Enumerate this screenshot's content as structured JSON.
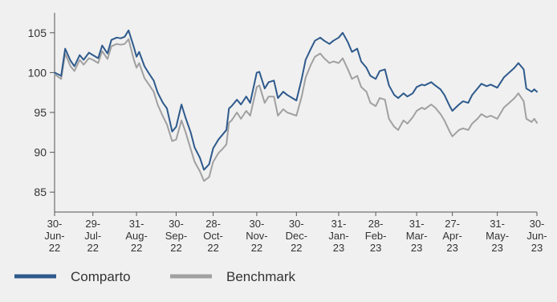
{
  "chart_data": {
    "type": "line",
    "title": "",
    "xlabel": "",
    "ylabel": "",
    "ylim": [
      82.5,
      107.5
    ],
    "grid": false,
    "legend_position": "bottom-left",
    "y_ticks": [
      85,
      90,
      95,
      100,
      105
    ],
    "x_ticks": [
      {
        "label": [
          "30-",
          "Jun-",
          "22"
        ],
        "x": "2022-06-30"
      },
      {
        "label": [
          "29-",
          "Jul-",
          "22"
        ],
        "x": "2022-07-29"
      },
      {
        "label": [
          "31-",
          "Aug-",
          "22"
        ],
        "x": "2022-08-31"
      },
      {
        "label": [
          "30-",
          "Sep-",
          "22"
        ],
        "x": "2022-09-30"
      },
      {
        "label": [
          "28-",
          "Oct-",
          "22"
        ],
        "x": "2022-10-28"
      },
      {
        "label": [
          "30-",
          "Nov-",
          "22"
        ],
        "x": "2022-11-30"
      },
      {
        "label": [
          "30-",
          "Dec-",
          "22"
        ],
        "x": "2022-12-30"
      },
      {
        "label": [
          "31-",
          "Jan-",
          "23"
        ],
        "x": "2023-01-31"
      },
      {
        "label": [
          "28-",
          "Feb-",
          "23"
        ],
        "x": "2023-02-28"
      },
      {
        "label": [
          "31-",
          "Mar-",
          "23"
        ],
        "x": "2023-03-31"
      },
      {
        "label": [
          "27-",
          "Apr-",
          "23"
        ],
        "x": "2023-04-27"
      },
      {
        "label": [
          "31-",
          "May-",
          "23"
        ],
        "x": "2023-05-31"
      },
      {
        "label": [
          "30-",
          "Jun-",
          "23"
        ],
        "x": "2023-06-30"
      }
    ],
    "series": [
      {
        "name": "Comparto",
        "color": "#2e5a8c",
        "points": [
          [
            "2022-06-30",
            100
          ],
          [
            "2022-07-05",
            99.6
          ],
          [
            "2022-07-08",
            103
          ],
          [
            "2022-07-12",
            101.5
          ],
          [
            "2022-07-15",
            100.8
          ],
          [
            "2022-07-19",
            102.2
          ],
          [
            "2022-07-22",
            101.6
          ],
          [
            "2022-07-26",
            102.5
          ],
          [
            "2022-07-29",
            102.2
          ],
          [
            "2022-08-02",
            101.8
          ],
          [
            "2022-08-05",
            103.4
          ],
          [
            "2022-08-09",
            102.4
          ],
          [
            "2022-08-12",
            104.1
          ],
          [
            "2022-08-16",
            104.4
          ],
          [
            "2022-08-19",
            104.3
          ],
          [
            "2022-08-22",
            104.5
          ],
          [
            "2022-08-25",
            105.3
          ],
          [
            "2022-08-29",
            103.2
          ],
          [
            "2022-08-31",
            102.0
          ],
          [
            "2022-09-02",
            102.6
          ],
          [
            "2022-09-06",
            100.8
          ],
          [
            "2022-09-09",
            100.0
          ],
          [
            "2022-09-13",
            99.0
          ],
          [
            "2022-09-16",
            97.5
          ],
          [
            "2022-09-20",
            96.2
          ],
          [
            "2022-09-23",
            95.5
          ],
          [
            "2022-09-27",
            92.6
          ],
          [
            "2022-09-30",
            93.2
          ],
          [
            "2022-10-04",
            96.0
          ],
          [
            "2022-10-07",
            94.4
          ],
          [
            "2022-10-11",
            92.5
          ],
          [
            "2022-10-14",
            90.6
          ],
          [
            "2022-10-18",
            89.3
          ],
          [
            "2022-10-21",
            87.8
          ],
          [
            "2022-10-25",
            88.5
          ],
          [
            "2022-10-28",
            90.5
          ],
          [
            "2022-11-01",
            91.6
          ],
          [
            "2022-11-04",
            92.2
          ],
          [
            "2022-11-07",
            92.8
          ],
          [
            "2022-11-09",
            95.5
          ],
          [
            "2022-11-11",
            95.8
          ],
          [
            "2022-11-15",
            96.6
          ],
          [
            "2022-11-18",
            96.0
          ],
          [
            "2022-11-22",
            97.0
          ],
          [
            "2022-11-25",
            96.2
          ],
          [
            "2022-11-30",
            100.0
          ],
          [
            "2022-12-02",
            100.1
          ],
          [
            "2022-12-06",
            98.0
          ],
          [
            "2022-12-09",
            98.8
          ],
          [
            "2022-12-13",
            99.0
          ],
          [
            "2022-12-16",
            96.8
          ],
          [
            "2022-12-20",
            97.6
          ],
          [
            "2022-12-23",
            97.2
          ],
          [
            "2022-12-30",
            96.5
          ],
          [
            "2023-01-03",
            99.2
          ],
          [
            "2023-01-06",
            101.6
          ],
          [
            "2023-01-10",
            103.0
          ],
          [
            "2023-01-13",
            104.0
          ],
          [
            "2023-01-17",
            104.4
          ],
          [
            "2023-01-20",
            104.0
          ],
          [
            "2023-01-24",
            103.6
          ],
          [
            "2023-01-27",
            104.0
          ],
          [
            "2023-01-31",
            104.4
          ],
          [
            "2023-02-03",
            105.0
          ],
          [
            "2023-02-07",
            103.8
          ],
          [
            "2023-02-10",
            102.6
          ],
          [
            "2023-02-14",
            103.0
          ],
          [
            "2023-02-17",
            101.4
          ],
          [
            "2023-02-21",
            100.6
          ],
          [
            "2023-02-24",
            99.6
          ],
          [
            "2023-02-28",
            99.2
          ],
          [
            "2023-03-03",
            100.2
          ],
          [
            "2023-03-07",
            100.4
          ],
          [
            "2023-03-10",
            98.4
          ],
          [
            "2023-03-14",
            97.2
          ],
          [
            "2023-03-17",
            96.8
          ],
          [
            "2023-03-21",
            97.4
          ],
          [
            "2023-03-24",
            97.0
          ],
          [
            "2023-03-28",
            97.4
          ],
          [
            "2023-03-31",
            98.2
          ],
          [
            "2023-04-04",
            98.5
          ],
          [
            "2023-04-06",
            98.4
          ],
          [
            "2023-04-11",
            98.8
          ],
          [
            "2023-04-14",
            98.4
          ],
          [
            "2023-04-18",
            97.9
          ],
          [
            "2023-04-21",
            97.2
          ],
          [
            "2023-04-25",
            95.8
          ],
          [
            "2023-04-27",
            95.2
          ],
          [
            "2023-05-02",
            96.0
          ],
          [
            "2023-05-05",
            96.4
          ],
          [
            "2023-05-09",
            96.2
          ],
          [
            "2023-05-12",
            97.2
          ],
          [
            "2023-05-16",
            98.0
          ],
          [
            "2023-05-19",
            98.6
          ],
          [
            "2023-05-23",
            98.3
          ],
          [
            "2023-05-26",
            98.5
          ],
          [
            "2023-05-31",
            98.1
          ],
          [
            "2023-06-05",
            99.4
          ],
          [
            "2023-06-09",
            100.0
          ],
          [
            "2023-06-13",
            100.6
          ],
          [
            "2023-06-16",
            101.2
          ],
          [
            "2023-06-20",
            100.4
          ],
          [
            "2023-06-22",
            98.0
          ],
          [
            "2023-06-26",
            97.6
          ],
          [
            "2023-06-28",
            97.9
          ],
          [
            "2023-06-30",
            97.6
          ]
        ]
      },
      {
        "name": "Benchmark",
        "color": "#a0a0a0",
        "points": [
          [
            "2022-06-30",
            99.8
          ],
          [
            "2022-07-05",
            99.2
          ],
          [
            "2022-07-08",
            102.4
          ],
          [
            "2022-07-12",
            100.8
          ],
          [
            "2022-07-15",
            100.2
          ],
          [
            "2022-07-19",
            101.6
          ],
          [
            "2022-07-22",
            101.0
          ],
          [
            "2022-07-26",
            101.8
          ],
          [
            "2022-07-29",
            101.6
          ],
          [
            "2022-08-02",
            101.2
          ],
          [
            "2022-08-05",
            102.7
          ],
          [
            "2022-08-09",
            101.7
          ],
          [
            "2022-08-12",
            103.3
          ],
          [
            "2022-08-16",
            103.6
          ],
          [
            "2022-08-19",
            103.5
          ],
          [
            "2022-08-22",
            103.6
          ],
          [
            "2022-08-25",
            104.2
          ],
          [
            "2022-08-29",
            101.6
          ],
          [
            "2022-08-31",
            100.6
          ],
          [
            "2022-09-02",
            101.2
          ],
          [
            "2022-09-06",
            99.3
          ],
          [
            "2022-09-09",
            98.6
          ],
          [
            "2022-09-13",
            97.6
          ],
          [
            "2022-09-16",
            96.0
          ],
          [
            "2022-09-20",
            94.5
          ],
          [
            "2022-09-23",
            93.5
          ],
          [
            "2022-09-27",
            91.4
          ],
          [
            "2022-09-30",
            91.6
          ],
          [
            "2022-10-04",
            94.0
          ],
          [
            "2022-10-07",
            92.6
          ],
          [
            "2022-10-11",
            90.4
          ],
          [
            "2022-10-14",
            88.8
          ],
          [
            "2022-10-18",
            87.6
          ],
          [
            "2022-10-21",
            86.4
          ],
          [
            "2022-10-25",
            86.9
          ],
          [
            "2022-10-28",
            88.8
          ],
          [
            "2022-11-01",
            89.9
          ],
          [
            "2022-11-04",
            90.4
          ],
          [
            "2022-11-07",
            91.0
          ],
          [
            "2022-11-09",
            93.7
          ],
          [
            "2022-11-11",
            94.0
          ],
          [
            "2022-11-15",
            95.0
          ],
          [
            "2022-11-18",
            94.2
          ],
          [
            "2022-11-22",
            95.2
          ],
          [
            "2022-11-25",
            94.6
          ],
          [
            "2022-11-30",
            98.2
          ],
          [
            "2022-12-02",
            98.4
          ],
          [
            "2022-12-06",
            96.2
          ],
          [
            "2022-12-09",
            97.0
          ],
          [
            "2022-12-13",
            97.0
          ],
          [
            "2022-12-16",
            94.6
          ],
          [
            "2022-12-20",
            95.4
          ],
          [
            "2022-12-23",
            95.0
          ],
          [
            "2022-12-30",
            94.6
          ],
          [
            "2023-01-03",
            97.0
          ],
          [
            "2023-01-06",
            99.4
          ],
          [
            "2023-01-10",
            101.0
          ],
          [
            "2023-01-13",
            102.0
          ],
          [
            "2023-01-17",
            102.4
          ],
          [
            "2023-01-20",
            101.8
          ],
          [
            "2023-01-24",
            101.2
          ],
          [
            "2023-01-27",
            101.4
          ],
          [
            "2023-01-31",
            101.2
          ],
          [
            "2023-02-03",
            101.8
          ],
          [
            "2023-02-07",
            100.4
          ],
          [
            "2023-02-10",
            99.2
          ],
          [
            "2023-02-14",
            99.6
          ],
          [
            "2023-02-17",
            98.2
          ],
          [
            "2023-02-21",
            97.6
          ],
          [
            "2023-02-24",
            96.2
          ],
          [
            "2023-02-28",
            95.8
          ],
          [
            "2023-03-03",
            96.8
          ],
          [
            "2023-03-07",
            96.6
          ],
          [
            "2023-03-10",
            94.2
          ],
          [
            "2023-03-14",
            93.2
          ],
          [
            "2023-03-17",
            92.8
          ],
          [
            "2023-03-21",
            94.0
          ],
          [
            "2023-03-24",
            93.6
          ],
          [
            "2023-03-28",
            94.4
          ],
          [
            "2023-03-31",
            95.2
          ],
          [
            "2023-04-04",
            95.6
          ],
          [
            "2023-04-06",
            95.4
          ],
          [
            "2023-04-11",
            96.0
          ],
          [
            "2023-04-14",
            95.6
          ],
          [
            "2023-04-18",
            94.8
          ],
          [
            "2023-04-21",
            94.0
          ],
          [
            "2023-04-25",
            92.6
          ],
          [
            "2023-04-27",
            92.0
          ],
          [
            "2023-05-02",
            92.8
          ],
          [
            "2023-05-05",
            93.0
          ],
          [
            "2023-05-09",
            92.8
          ],
          [
            "2023-05-12",
            93.6
          ],
          [
            "2023-05-16",
            94.2
          ],
          [
            "2023-05-19",
            94.8
          ],
          [
            "2023-05-23",
            94.4
          ],
          [
            "2023-05-26",
            94.6
          ],
          [
            "2023-05-31",
            94.2
          ],
          [
            "2023-06-05",
            95.6
          ],
          [
            "2023-06-09",
            96.2
          ],
          [
            "2023-06-13",
            96.8
          ],
          [
            "2023-06-16",
            97.4
          ],
          [
            "2023-06-20",
            96.4
          ],
          [
            "2023-06-22",
            94.2
          ],
          [
            "2023-06-26",
            93.8
          ],
          [
            "2023-06-28",
            94.2
          ],
          [
            "2023-06-30",
            93.7
          ]
        ]
      }
    ]
  }
}
